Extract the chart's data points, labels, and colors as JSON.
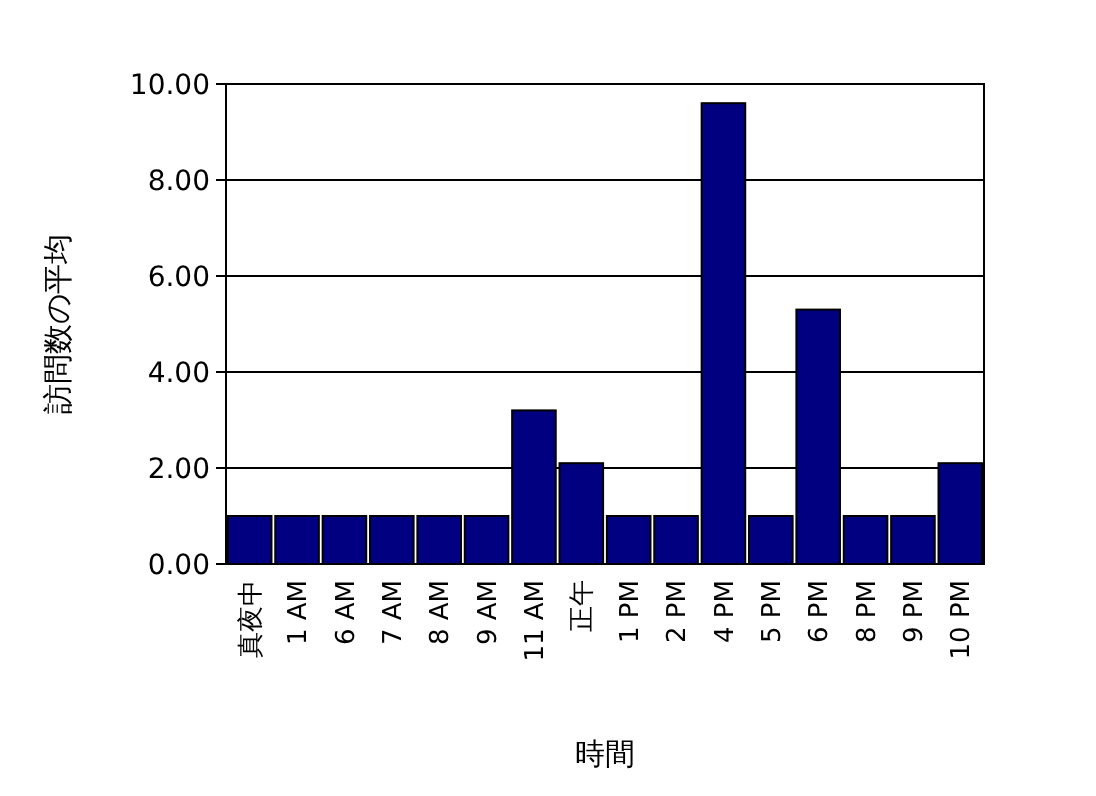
{
  "chart_data": {
    "type": "bar",
    "xlabel": "時間",
    "ylabel": "訪問数の平均",
    "categories": [
      "真夜中",
      "1 AM",
      "6 AM",
      "7 AM",
      "8 AM",
      "9 AM",
      "11 AM",
      "正午",
      "1 PM",
      "2 PM",
      "4 PM",
      "5 PM",
      "6 PM",
      "8 PM",
      "9 PM",
      "10 PM"
    ],
    "values": [
      1,
      1,
      1,
      1,
      1,
      1,
      3.2,
      2.1,
      1,
      1,
      9.6,
      1,
      5.3,
      1,
      1,
      2.1
    ],
    "color": "#000080",
    "ylim": [
      0,
      10
    ],
    "yticks": [
      {
        "value": 0,
        "label": "0.00"
      },
      {
        "value": 2,
        "label": "2.00"
      },
      {
        "value": 4,
        "label": "4.00"
      },
      {
        "value": 6,
        "label": "6.00"
      },
      {
        "value": 8,
        "label": "8.00"
      },
      {
        "value": 10,
        "label": "10.00"
      }
    ],
    "grid": "y"
  }
}
